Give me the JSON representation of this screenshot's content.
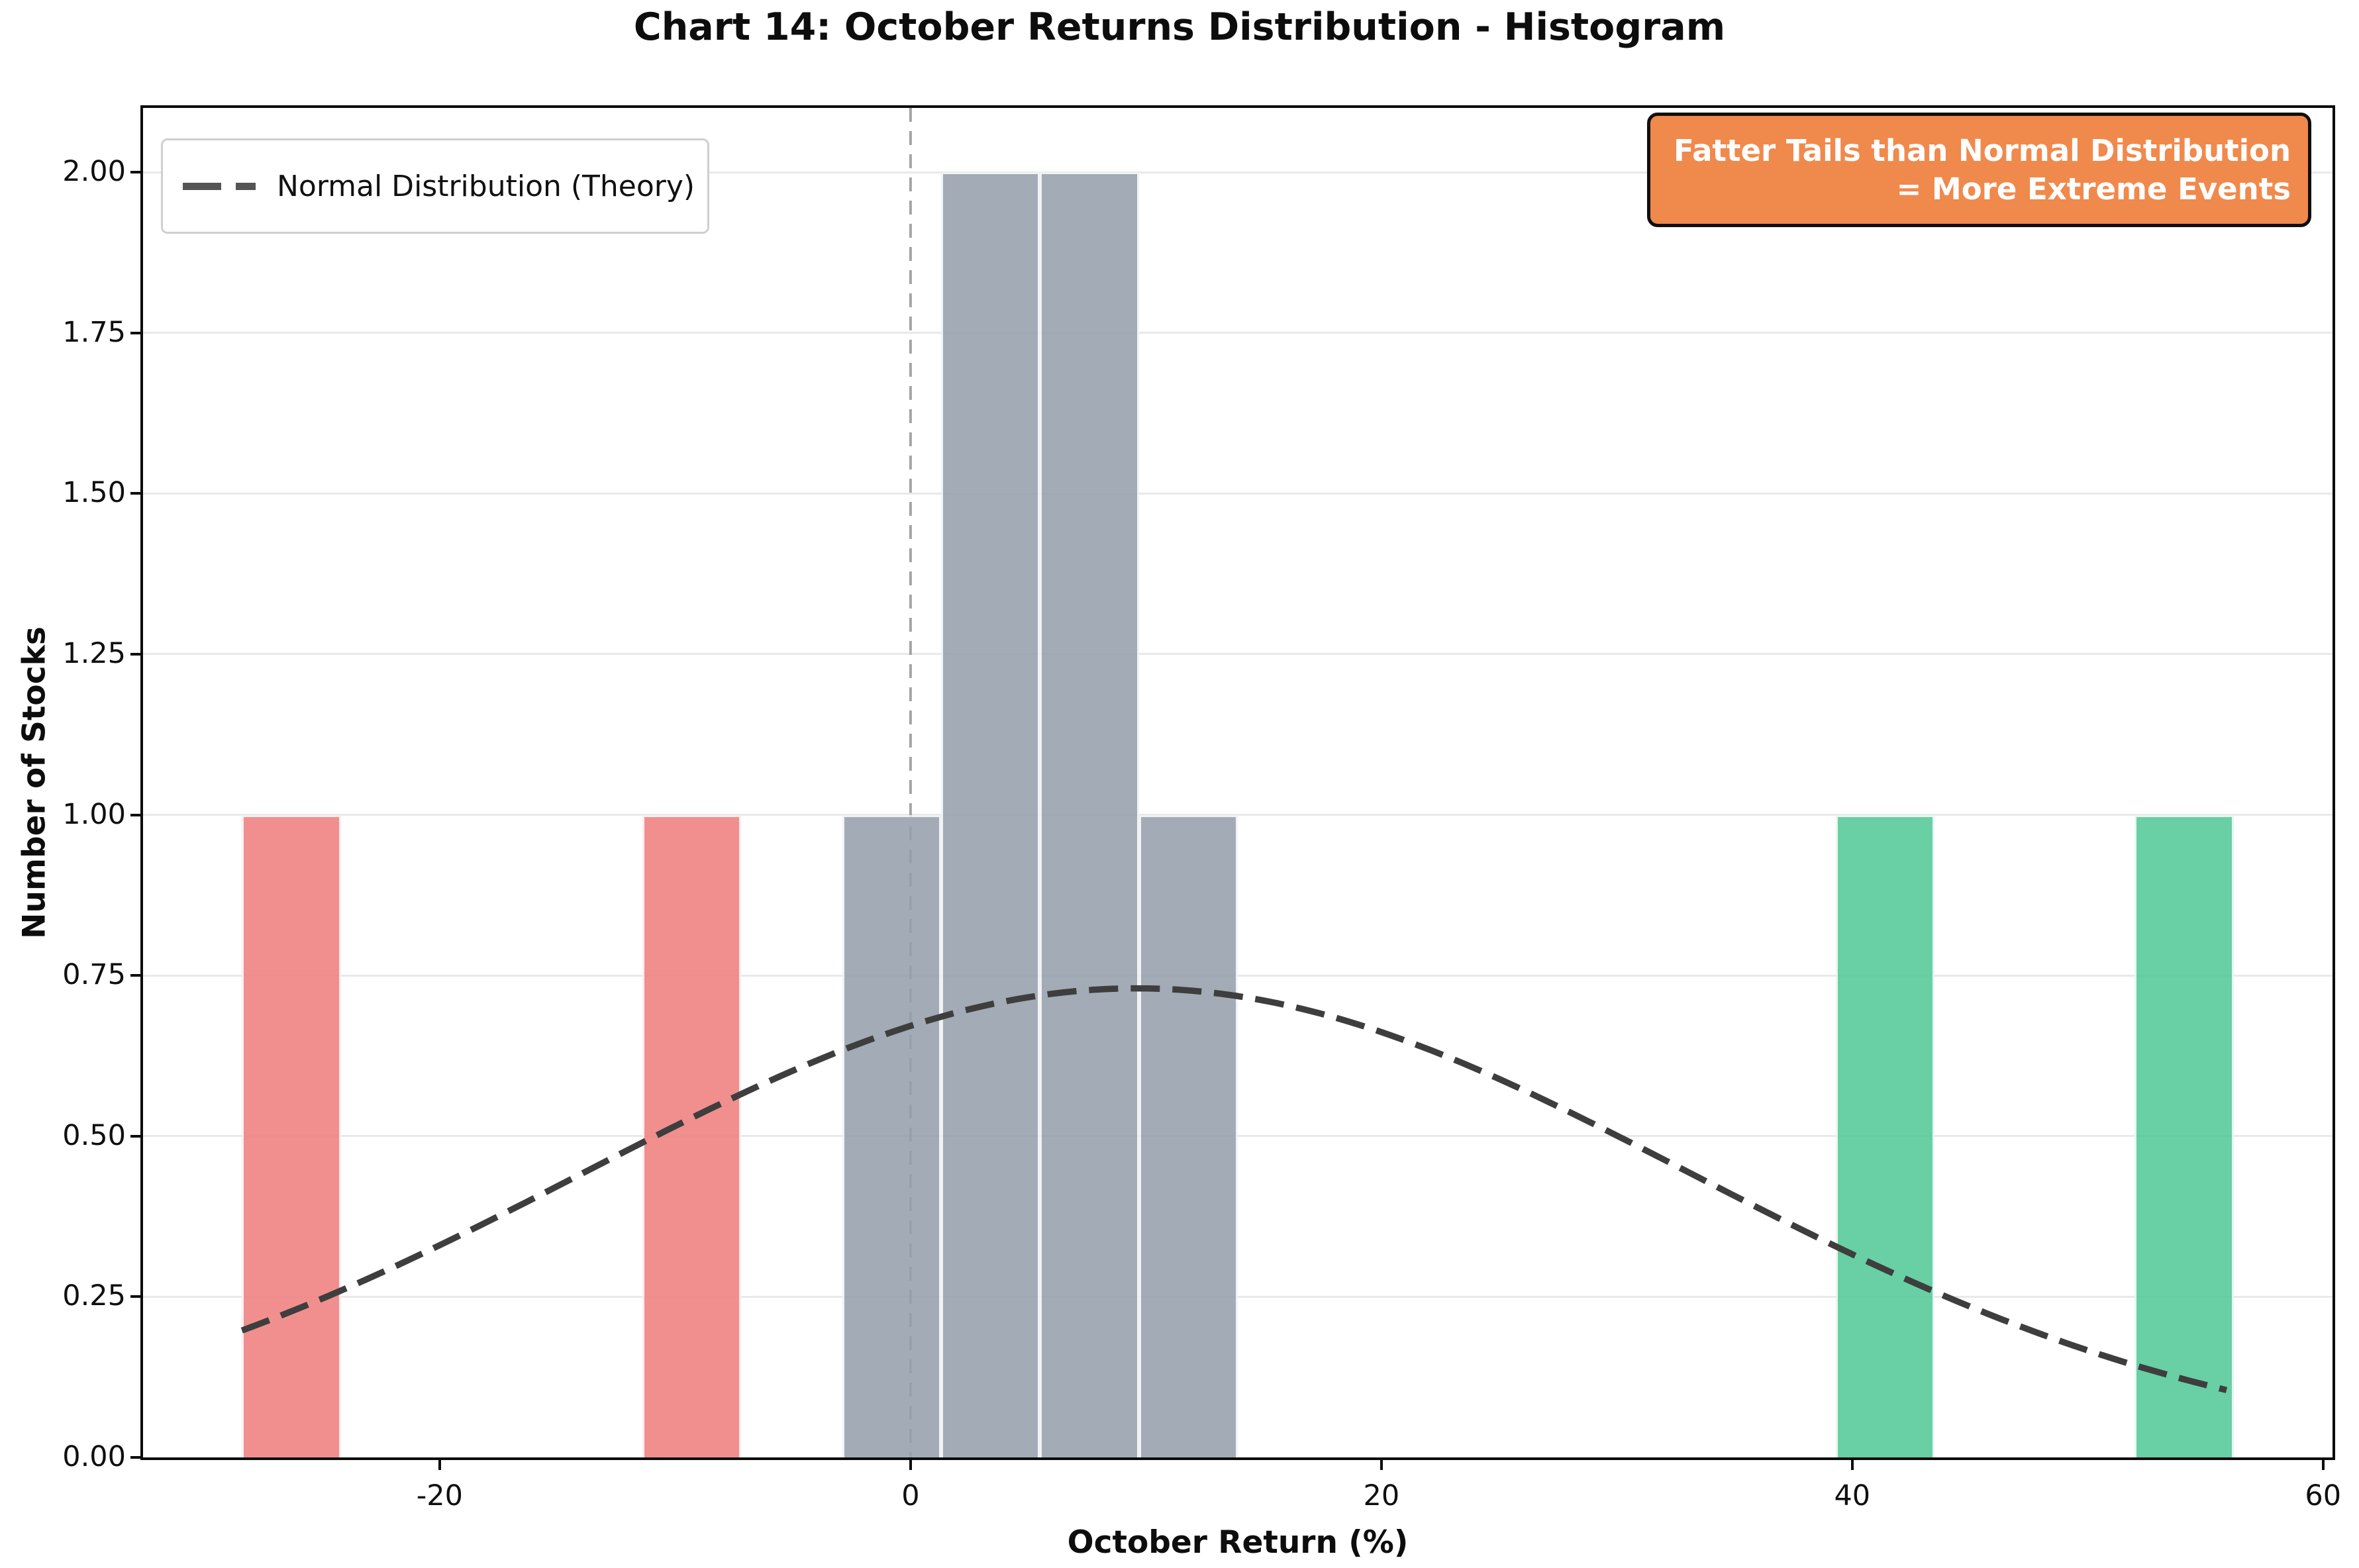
{
  "chart_data": {
    "type": "histogram",
    "title": "Chart 14: October Returns Distribution - Histogram",
    "xlabel": "October Return (%)",
    "ylabel": "Number of Stocks",
    "xlim": [
      -32.6,
      60.4
    ],
    "ylim": [
      0,
      2.1
    ],
    "grid": "horizontal",
    "x_ticks": [
      {
        "value": -20,
        "label": "-20"
      },
      {
        "value": 0,
        "label": "0"
      },
      {
        "value": 20,
        "label": "20"
      },
      {
        "value": 40,
        "label": "40"
      },
      {
        "value": 60,
        "label": "60"
      }
    ],
    "y_ticks": [
      {
        "value": 0.0,
        "label": "0.00"
      },
      {
        "value": 0.25,
        "label": "0.25"
      },
      {
        "value": 0.5,
        "label": "0.50"
      },
      {
        "value": 0.75,
        "label": "0.75"
      },
      {
        "value": 1.0,
        "label": "1.00"
      },
      {
        "value": 1.25,
        "label": "1.25"
      },
      {
        "value": 1.5,
        "label": "1.50"
      },
      {
        "value": 1.75,
        "label": "1.75"
      },
      {
        "value": 2.0,
        "label": "2.00"
      }
    ],
    "bars": [
      {
        "x_start": -28.4,
        "x_end": -24.2,
        "height": 1,
        "group": "large-loss",
        "color": "#F08080"
      },
      {
        "x_start": -11.4,
        "x_end": -7.2,
        "height": 1,
        "group": "large-loss",
        "color": "#F08080"
      },
      {
        "x_start": -2.9,
        "x_end": 1.3,
        "height": 1,
        "group": "near-mean",
        "color": "#97A0AD"
      },
      {
        "x_start": 1.3,
        "x_end": 5.5,
        "height": 2,
        "group": "near-mean",
        "color": "#97A0AD"
      },
      {
        "x_start": 5.5,
        "x_end": 9.7,
        "height": 2,
        "group": "near-mean",
        "color": "#97A0AD"
      },
      {
        "x_start": 9.7,
        "x_end": 13.9,
        "height": 1,
        "group": "near-mean",
        "color": "#97A0AD"
      },
      {
        "x_start": 39.3,
        "x_end": 43.5,
        "height": 1,
        "group": "large-gain",
        "color": "#55C998"
      },
      {
        "x_start": 52.0,
        "x_end": 56.2,
        "height": 1,
        "group": "large-gain",
        "color": "#55C998"
      }
    ],
    "normal_curve": {
      "label": "Normal Distribution (Theory)",
      "shape": "gaussian",
      "amplitude": 0.73,
      "mean": 9.6,
      "std": 23.5,
      "x_start": -28.4,
      "x_end": 55.9,
      "color": "#3E3E3E",
      "style": "dashed"
    },
    "vline": {
      "x": 0,
      "color": "#A5A5A5",
      "style": "dashed"
    },
    "legend": {
      "position": "upper-left",
      "entries": [
        {
          "label": "Normal Distribution (Theory)",
          "color": "#555555",
          "style": "dashed"
        }
      ]
    },
    "annotation": {
      "line1": "Fatter Tails than Normal Distribution",
      "line2": "= More Extreme Events",
      "bg_color": "#F0894C",
      "border_color": "#0F0F0F",
      "text_color": "#FFFFFF"
    }
  }
}
